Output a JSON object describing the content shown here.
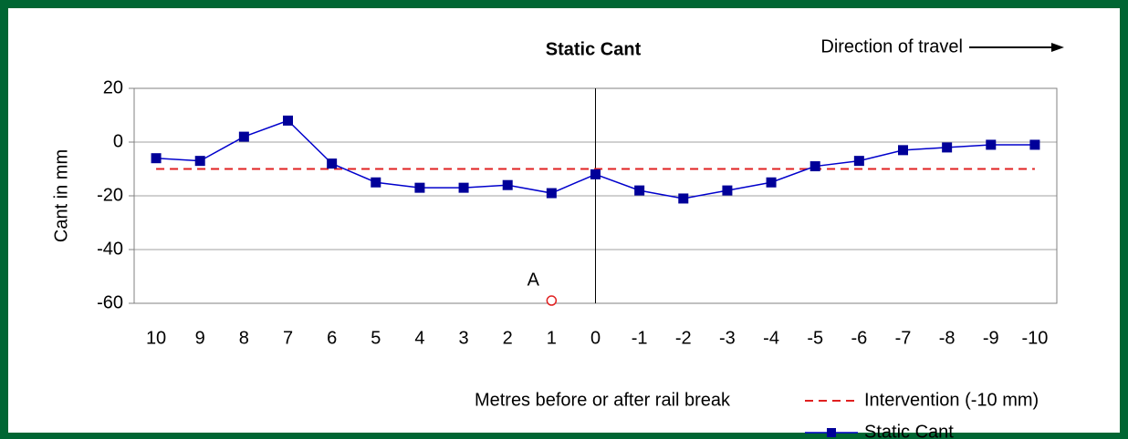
{
  "chart_data": {
    "type": "line",
    "title": "Static Cant",
    "direction_label": "Direction of travel",
    "x_label": "Metres before or after rail break",
    "y_label": "Cant in mm",
    "categories": [
      "10",
      "9",
      "8",
      "7",
      "6",
      "5",
      "4",
      "3",
      "2",
      "1",
      "0",
      "-1",
      "-2",
      "-3",
      "-4",
      "-5",
      "-6",
      "-7",
      "-8",
      "-9",
      "-10"
    ],
    "series": [
      {
        "name": "Intervention (-10 mm)",
        "color": "#e02020",
        "line_style": "dashed",
        "marker": "none",
        "values": [
          -10,
          -10,
          -10,
          -10,
          -10,
          -10,
          -10,
          -10,
          -10,
          -10,
          -10,
          -10,
          -10,
          -10,
          -10,
          -10,
          -10,
          -10,
          -10,
          -10,
          -10
        ]
      },
      {
        "name": "Static Cant",
        "color": "#0000cc",
        "line_style": "solid",
        "marker": "square",
        "values": [
          -6,
          -7,
          2,
          8,
          -8,
          -15,
          -17,
          -17,
          -16,
          -19,
          -12,
          -18,
          -21,
          -18,
          -15,
          -9,
          -7,
          -3,
          -2,
          -1,
          -1
        ]
      }
    ],
    "annotations": [
      {
        "text": "A",
        "x": "1",
        "y": -59,
        "color": "#e02020"
      }
    ],
    "ylim": [
      -60,
      20
    ],
    "yticks": [
      20,
      0,
      -20,
      -40,
      -60
    ],
    "grid": true
  }
}
